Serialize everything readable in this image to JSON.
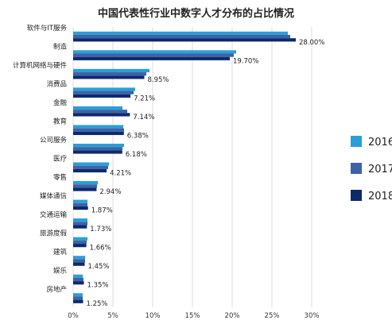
{
  "chart_data": {
    "type": "bar",
    "orientation": "horizontal",
    "title": "中国代表性行业中数字人才分布的占比情况",
    "xlabel": "",
    "ylabel": "",
    "xlim": [
      0,
      30
    ],
    "x_ticks": [
      "0%",
      "5%",
      "10%",
      "15%",
      "20%",
      "25%",
      "30%"
    ],
    "grid": "vertical",
    "legend_position": "right",
    "categories": [
      "软件与IT服务",
      "制造",
      "计算机网络与硬件",
      "消费品",
      "金融",
      "教育",
      "公司服务",
      "医疗",
      "零售",
      "媒体通信",
      "交通运输",
      "旅游度假",
      "建筑",
      "娱乐",
      "房地产"
    ],
    "series": [
      {
        "name": "2016",
        "color": "#2a9fd6",
        "values": [
          27.0,
          20.5,
          9.6,
          7.8,
          6.2,
          6.3,
          6.4,
          4.5,
          3.1,
          1.8,
          1.8,
          1.8,
          1.5,
          1.2,
          1.2
        ]
      },
      {
        "name": "2017",
        "color": "#3d62a8",
        "values": [
          27.3,
          20.2,
          9.2,
          7.6,
          6.8,
          6.4,
          6.2,
          4.4,
          3.0,
          1.8,
          1.8,
          1.7,
          1.5,
          1.3,
          1.2
        ]
      },
      {
        "name": "2018",
        "color": "#0d2a6b",
        "values": [
          28.0,
          19.7,
          8.95,
          7.21,
          7.14,
          6.38,
          6.18,
          4.21,
          2.94,
          1.87,
          1.73,
          1.66,
          1.45,
          1.35,
          1.25
        ]
      }
    ],
    "data_labels": [
      "28.00%",
      "19.70%",
      "8.95%",
      "7.21%",
      "7.14%",
      "6.38%",
      "6.18%",
      "4.21%",
      "2.94%",
      "1.87%",
      "1.73%",
      "1.66%",
      "1.45%",
      "1.35%",
      "1.25%"
    ]
  }
}
